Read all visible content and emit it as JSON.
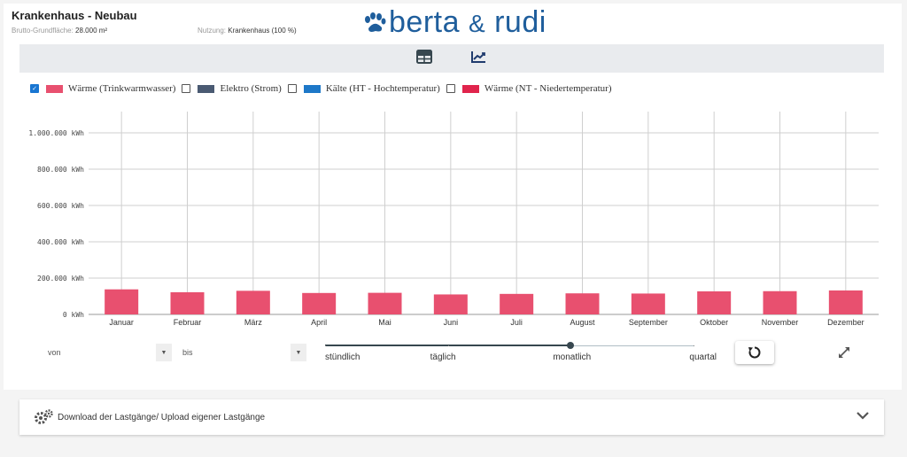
{
  "header": {
    "title": "Krankenhaus - Neubau",
    "area_label": "Brutto-Grundfläche:",
    "area_value": "28.000 m²",
    "usage_label": "Nutzung:",
    "usage_value": "Krankenhaus (100 %)"
  },
  "logo": {
    "text_left": "berta",
    "text_amp": "&",
    "text_right": "rudi",
    "color": "#1f5e9c",
    "icon": "paw-icon"
  },
  "toolbar": {
    "table_icon": "table-icon",
    "chart_icon": "line-chart-icon"
  },
  "legend": [
    {
      "label": "Wärme (Trinkwarmwasser)",
      "checked": true,
      "color": "#e8506f"
    },
    {
      "label": "Elektro (Strom)",
      "checked": false,
      "color": "#4a5a72"
    },
    {
      "label": "Kälte (HT - Hochtemperatur)",
      "checked": false,
      "color": "#1e78c8"
    },
    {
      "label": "Wärme (NT - Niedertemperatur)",
      "checked": false,
      "color": "#e0244c"
    }
  ],
  "chart_data": {
    "type": "bar",
    "categories": [
      "Januar",
      "Februar",
      "März",
      "April",
      "Mai",
      "Juni",
      "Juli",
      "August",
      "September",
      "Oktober",
      "November",
      "Dezember"
    ],
    "series": [
      {
        "name": "Wärme (Trinkwarmwasser)",
        "color": "#e8506f",
        "values": [
          138000,
          122000,
          130000,
          118000,
          119000,
          110000,
          113000,
          116000,
          115000,
          127000,
          128000,
          132000
        ]
      }
    ],
    "ylim": [
      0,
      1000000
    ],
    "yticks": [
      0,
      200000,
      400000,
      600000,
      800000,
      1000000
    ],
    "ytick_labels": [
      "0 kWh",
      "200.000 kWh",
      "400.000 kWh",
      "600.000 kWh",
      "800.000 kWh",
      "1.000.000 kWh"
    ],
    "grid": true
  },
  "controls": {
    "from_placeholder": "von",
    "to_placeholder": "bis",
    "resolution_options": [
      "stündlich",
      "täglich",
      "monatlich",
      "quartal"
    ],
    "resolution_selected_index": 2
  },
  "download": {
    "label": "Download der Lastgänge/ Upload eigener Lastgänge",
    "icon": "gears-icon"
  }
}
